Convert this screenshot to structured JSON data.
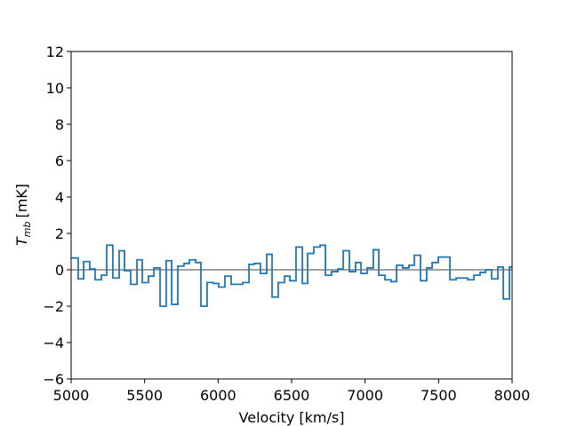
{
  "chart_data": {
    "type": "step",
    "xlabel": "Velocity [km/s]",
    "ylabel": {
      "symbol": "T",
      "subscript": "mb",
      "unit": "[mK]"
    },
    "x": [
      5000,
      5048,
      5085,
      5127,
      5163,
      5206,
      5242,
      5284,
      5327,
      5363,
      5405,
      5448,
      5484,
      5526,
      5563,
      5605,
      5647,
      5684,
      5726,
      5768,
      5805,
      5847,
      5883,
      5925,
      5968,
      6004,
      6046,
      6089,
      6125,
      6167,
      6210,
      6246,
      6288,
      6331,
      6367,
      6409,
      6452,
      6488,
      6530,
      6573,
      6609,
      6651,
      6694,
      6730,
      6772,
      6815,
      6851,
      6893,
      6935,
      6972,
      7014,
      7056,
      7093,
      7135,
      7177,
      7214,
      7256,
      7298,
      7335,
      7377,
      7419,
      7456,
      7498,
      7540,
      7577,
      7619,
      7661,
      7698,
      7740,
      7782,
      7819,
      7861,
      7903,
      7940,
      7982
    ],
    "series": [
      {
        "color": "#1f77b4",
        "values": [
          0.65,
          -0.5,
          0.45,
          0.05,
          -0.55,
          -0.3,
          1.35,
          -0.45,
          1.05,
          -0.05,
          -0.8,
          0.55,
          -0.7,
          -0.35,
          0.1,
          -2.0,
          0.5,
          -1.9,
          0.2,
          0.35,
          0.55,
          0.4,
          -2.0,
          -0.7,
          -0.75,
          -0.95,
          -0.35,
          -0.8,
          -0.8,
          -0.7,
          0.3,
          0.35,
          -0.2,
          0.85,
          -1.5,
          -0.7,
          -0.35,
          -0.6,
          1.25,
          -0.75,
          0.9,
          1.25,
          1.35,
          -0.3,
          -0.1,
          0.05,
          1.05,
          -0.1,
          0.4,
          -0.2,
          0.1,
          1.1,
          -0.3,
          -0.55,
          -0.65,
          0.25,
          0.1,
          0.25,
          0.8,
          -0.6,
          0.1,
          0.4,
          0.7,
          0.7,
          -0.55,
          -0.45,
          -0.45,
          -0.55,
          -0.3,
          -0.15,
          0.0,
          -0.5,
          0.15,
          -1.6,
          0.15
        ]
      }
    ],
    "baseline": 0,
    "baseline_color": "#808080",
    "xlim": [
      5000,
      8000
    ],
    "xticks": [
      5000,
      5500,
      6000,
      6500,
      7000,
      7500,
      8000
    ],
    "ylim": [
      -6,
      12
    ],
    "yticks": [
      {
        "value": -6,
        "label": "−6"
      },
      {
        "value": -4,
        "label": "−4"
      },
      {
        "value": -2,
        "label": "−2"
      },
      0,
      2,
      4,
      6,
      8,
      10,
      12
    ]
  }
}
